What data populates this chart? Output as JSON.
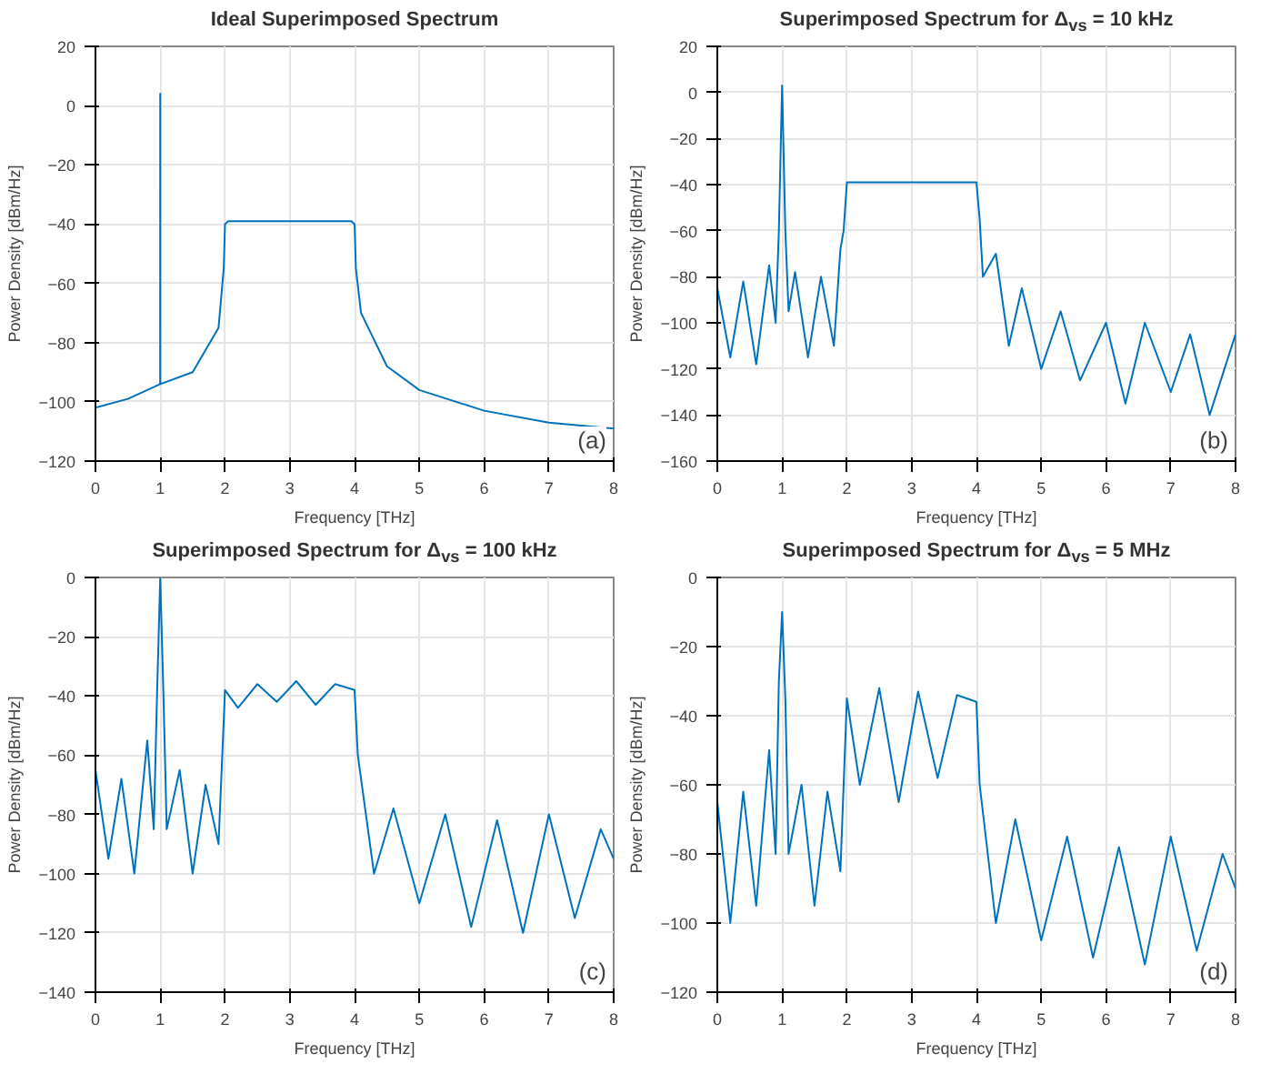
{
  "chart_data": [
    {
      "type": "line",
      "title": "Ideal Superimposed Spectrum",
      "xlabel": "Frequency [THz]",
      "ylabel": "Power Density [dBm/Hz]",
      "annotations": [
        "(a)"
      ],
      "grid": true,
      "xlim": [
        0,
        8
      ],
      "xticks": [
        0,
        1,
        2,
        3,
        4,
        5,
        6,
        7,
        8
      ],
      "ylim": [
        -120,
        20
      ],
      "yticks": [
        -120,
        -100,
        -80,
        -60,
        -40,
        -20,
        0,
        20
      ],
      "series": [
        {
          "color": "#0072bd",
          "x": [
            0,
            0.5,
            0.9,
            0.999,
            1.0,
            1.001,
            1.5,
            1.9,
            1.98,
            2.0,
            2.05,
            3.0,
            3.95,
            4.0,
            4.02,
            4.1,
            4.5,
            5.0,
            6.0,
            7.0,
            8.0
          ],
          "values": [
            -102,
            -99,
            -95,
            -94,
            4,
            -94,
            -90,
            -75,
            -55,
            -40,
            -39,
            -39,
            -39,
            -40,
            -55,
            -70,
            -88,
            -96,
            -103,
            -107,
            -109
          ]
        }
      ]
    },
    {
      "type": "line",
      "title": "Superimposed Spectrum for Δ$_{vs}$ = 10 kHz",
      "xlabel": "Frequency [THz]",
      "ylabel": "Power Density [dBm/Hz]",
      "annotations": [
        "(b)"
      ],
      "grid": true,
      "xlim": [
        0,
        8
      ],
      "xticks": [
        0,
        1,
        2,
        3,
        4,
        5,
        6,
        7,
        8
      ],
      "ylim": [
        -160,
        20
      ],
      "yticks": [
        -160,
        -140,
        -120,
        -100,
        -80,
        -60,
        -40,
        -20,
        0,
        20
      ],
      "series": [
        {
          "color": "#0072bd",
          "x": [
            0,
            0.2,
            0.4,
            0.6,
            0.8,
            0.9,
            0.95,
            1.0,
            1.05,
            1.1,
            1.2,
            1.4,
            1.6,
            1.8,
            1.9,
            1.95,
            2.0,
            3.0,
            4.0,
            4.05,
            4.1,
            4.3,
            4.5,
            4.7,
            5.0,
            5.3,
            5.6,
            6.0,
            6.3,
            6.6,
            7.0,
            7.3,
            7.6,
            8.0
          ],
          "values": [
            -85,
            -115,
            -82,
            -118,
            -75,
            -100,
            -60,
            3,
            -60,
            -95,
            -78,
            -115,
            -80,
            -110,
            -68,
            -60,
            -39,
            -39,
            -39,
            -55,
            -80,
            -70,
            -110,
            -85,
            -120,
            -95,
            -125,
            -100,
            -135,
            -100,
            -130,
            -105,
            -140,
            -105
          ]
        }
      ]
    },
    {
      "type": "line",
      "title": "Superimposed Spectrum for Δ$_{vs}$ = 100 kHz",
      "xlabel": "Frequency [THz]",
      "ylabel": "Power Density [dBm/Hz]",
      "annotations": [
        "(c)"
      ],
      "grid": true,
      "xlim": [
        0,
        8
      ],
      "xticks": [
        0,
        1,
        2,
        3,
        4,
        5,
        6,
        7,
        8
      ],
      "ylim": [
        -140,
        0
      ],
      "yticks": [
        -140,
        -120,
        -100,
        -80,
        -60,
        -40,
        -20,
        0
      ],
      "series": [
        {
          "color": "#0072bd",
          "x": [
            0,
            0.2,
            0.4,
            0.6,
            0.8,
            0.9,
            0.95,
            1.0,
            1.05,
            1.1,
            1.3,
            1.5,
            1.7,
            1.9,
            2.0,
            2.2,
            2.5,
            2.8,
            3.1,
            3.4,
            3.7,
            4.0,
            4.05,
            4.3,
            4.6,
            5.0,
            5.4,
            5.8,
            6.2,
            6.6,
            7.0,
            7.4,
            7.8,
            8.0
          ],
          "values": [
            -65,
            -95,
            -68,
            -100,
            -55,
            -85,
            -40,
            0,
            -40,
            -85,
            -65,
            -100,
            -70,
            -90,
            -38,
            -44,
            -36,
            -42,
            -35,
            -43,
            -36,
            -38,
            -60,
            -100,
            -78,
            -110,
            -80,
            -118,
            -82,
            -120,
            -80,
            -115,
            -85,
            -95
          ]
        }
      ]
    },
    {
      "type": "line",
      "title": "Superimposed Spectrum for Δ$_{vs}$ = 5 MHz",
      "xlabel": "Frequency [THz]",
      "ylabel": "Power Density [dBm/Hz]",
      "annotations": [
        "(d)"
      ],
      "grid": true,
      "xlim": [
        0,
        8
      ],
      "xticks": [
        0,
        1,
        2,
        3,
        4,
        5,
        6,
        7,
        8
      ],
      "ylim": [
        -120,
        0
      ],
      "yticks": [
        -120,
        -100,
        -80,
        -60,
        -40,
        -20,
        0
      ],
      "series": [
        {
          "color": "#0072bd",
          "x": [
            0,
            0.2,
            0.4,
            0.6,
            0.8,
            0.9,
            0.95,
            1.0,
            1.05,
            1.1,
            1.3,
            1.5,
            1.7,
            1.9,
            2.0,
            2.2,
            2.5,
            2.8,
            3.1,
            3.4,
            3.7,
            4.0,
            4.05,
            4.3,
            4.6,
            5.0,
            5.4,
            5.8,
            6.2,
            6.6,
            7.0,
            7.4,
            7.8,
            8.0
          ],
          "values": [
            -65,
            -100,
            -62,
            -95,
            -50,
            -80,
            -30,
            -10,
            -35,
            -80,
            -60,
            -95,
            -62,
            -85,
            -35,
            -60,
            -32,
            -65,
            -33,
            -58,
            -34,
            -36,
            -60,
            -100,
            -70,
            -105,
            -75,
            -110,
            -78,
            -112,
            -75,
            -108,
            -80,
            -90
          ]
        }
      ]
    }
  ]
}
